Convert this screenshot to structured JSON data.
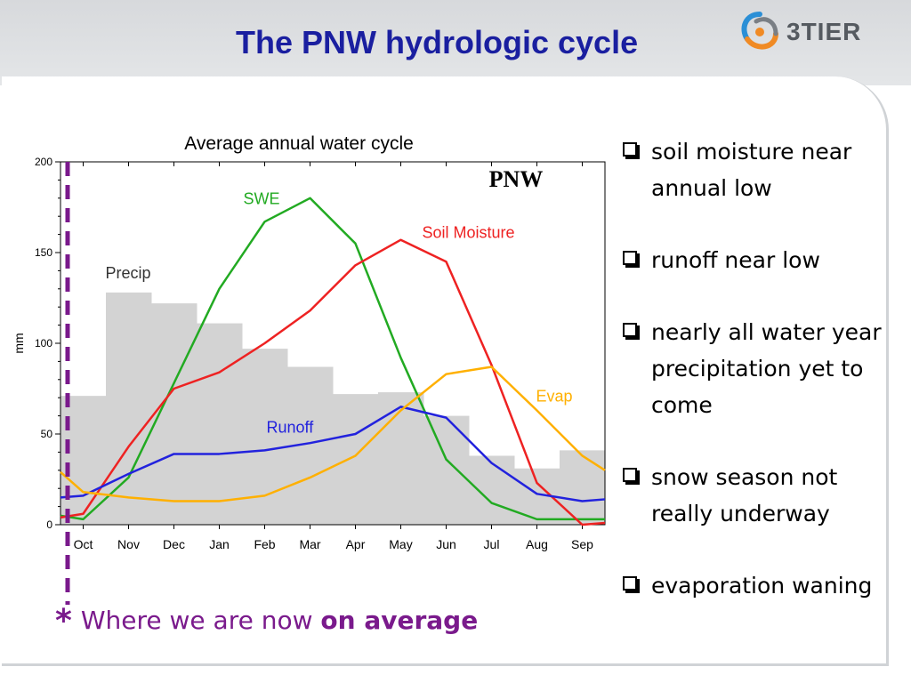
{
  "slide": {
    "title": "The PNW hydrologic cycle",
    "logo_text": "3TIER",
    "bullets": [
      "soil moisture near annual low",
      "runoff near low",
      "nearly all water year precipitation yet to come",
      "snow season not really underway",
      "evaporation waning"
    ],
    "footnote": {
      "star": "*",
      "text": "Where we are now",
      "emphasis": "on average"
    },
    "colors": {
      "title": "#1a1fa0",
      "footnote": "#7a1a8c",
      "marker_line": "#7a1a8c",
      "header_band": "#d7d9dc"
    }
  },
  "chart_data": {
    "type": "line",
    "title": "Average annual water cycle",
    "region_label": "PNW",
    "xlabel": "",
    "ylabel": "mm",
    "ylim": [
      0,
      200
    ],
    "yticks": [
      0,
      50,
      100,
      150,
      200
    ],
    "categories": [
      "Oct",
      "Nov",
      "Dec",
      "Jan",
      "Feb",
      "Mar",
      "Apr",
      "May",
      "Jun",
      "Jul",
      "Aug",
      "Sep"
    ],
    "bars": {
      "name": "Precip",
      "color": "#d3d3d3",
      "values": [
        71,
        128,
        122,
        111,
        97,
        87,
        72,
        73,
        60,
        38,
        31,
        41
      ]
    },
    "series": [
      {
        "name": "SWE",
        "color": "#22aa22",
        "values": [
          3,
          26,
          78,
          130,
          167,
          180,
          155,
          92,
          36,
          12,
          3,
          3
        ]
      },
      {
        "name": "Soil Moisture",
        "color": "#ee2222",
        "values": [
          6,
          43,
          75,
          84,
          100,
          118,
          143,
          157,
          145,
          88,
          23,
          0
        ]
      },
      {
        "name": "Runoff",
        "color": "#2222dd",
        "values": [
          16,
          28,
          39,
          39,
          41,
          45,
          50,
          65,
          59,
          34,
          17,
          13
        ]
      },
      {
        "name": "Evap",
        "color": "#ffb000",
        "values": [
          18,
          15,
          13,
          13,
          16,
          26,
          38,
          63,
          83,
          87,
          63,
          38
        ]
      }
    ],
    "edge_values": {
      "Evap": [
        29,
        30
      ],
      "Runoff": [
        15,
        14
      ],
      "SWE": [
        5,
        3
      ],
      "Soil Moisture": [
        4,
        1
      ]
    },
    "grid": false,
    "legend": "inline labels"
  }
}
